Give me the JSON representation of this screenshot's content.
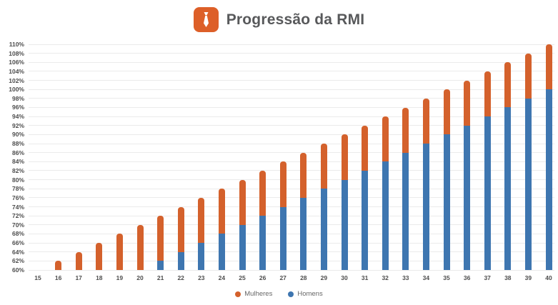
{
  "header": {
    "title": "Progressão da RMI",
    "icon": "tie-icon"
  },
  "colors": {
    "mulheres": "#d4612c",
    "homens": "#3e76b0",
    "icon_bg": "#dd5f28",
    "icon_glyph": "#ffffff",
    "title_text": "#58595b",
    "axis_text": "#4d4d4d",
    "gridline": "#ebebeb",
    "legend_text": "#666666",
    "background": "#ffffff"
  },
  "chart_data": {
    "type": "bar",
    "title": "Progressão da RMI",
    "bar_style": "overlapped",
    "grid": "horizontal",
    "legend_position": "bottom",
    "xlabel": "",
    "ylabel": "",
    "ylim": [
      60,
      110
    ],
    "ytick_step": 2,
    "ytick_suffix": "%",
    "x": [
      15,
      16,
      17,
      18,
      19,
      20,
      21,
      22,
      23,
      24,
      25,
      26,
      27,
      28,
      29,
      30,
      31,
      32,
      33,
      34,
      35,
      36,
      37,
      38,
      39,
      40
    ],
    "series": [
      {
        "name": "Mulheres",
        "color": "#d4612c",
        "values": [
          60,
          62,
          64,
          66,
          68,
          70,
          72,
          74,
          76,
          78,
          80,
          82,
          84,
          86,
          88,
          90,
          92,
          94,
          96,
          98,
          100,
          102,
          104,
          106,
          108,
          110
        ]
      },
      {
        "name": "Homens",
        "color": "#3e76b0",
        "values": [
          null,
          null,
          null,
          null,
          null,
          60,
          62,
          64,
          66,
          68,
          70,
          72,
          74,
          76,
          78,
          80,
          82,
          84,
          86,
          88,
          90,
          92,
          94,
          96,
          98,
          100
        ]
      }
    ]
  },
  "legend": {
    "items": [
      {
        "label": "Mulheres",
        "color": "#d4612c"
      },
      {
        "label": "Homens",
        "color": "#3e76b0"
      }
    ]
  }
}
